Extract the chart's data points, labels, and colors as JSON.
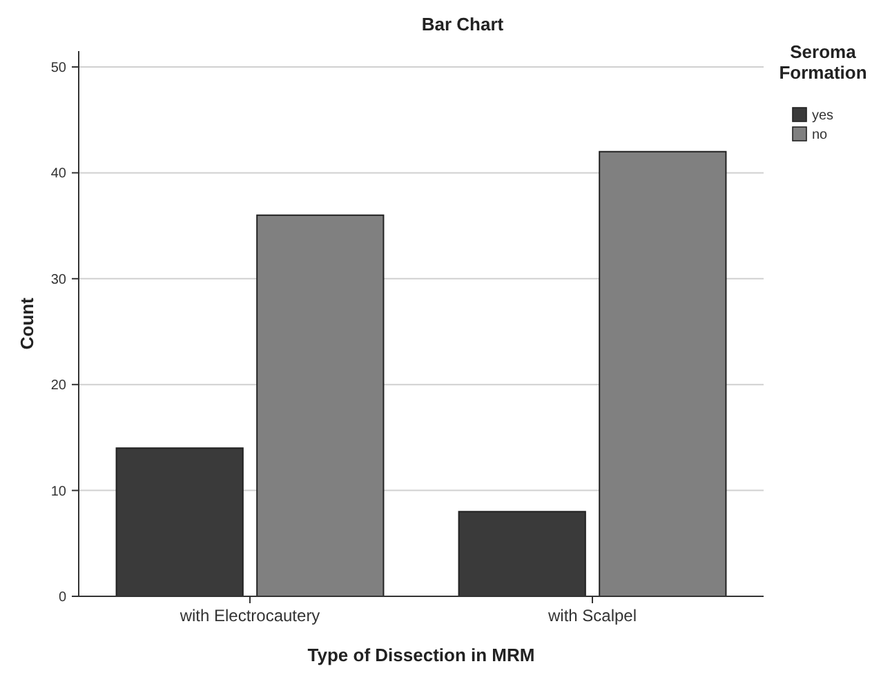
{
  "chart_data": {
    "type": "bar",
    "title": "Bar Chart",
    "xlabel": "Type of Dissection in MRM",
    "ylabel": "Count",
    "legend_title": "Seroma Formation",
    "categories": [
      "with Electrocautery",
      "with Scalpel"
    ],
    "series": [
      {
        "name": "yes",
        "color": "#3a3a3a",
        "values": [
          14,
          8
        ]
      },
      {
        "name": "no",
        "color": "#808080",
        "values": [
          36,
          42
        ]
      }
    ],
    "ylim": [
      0,
      51.5
    ],
    "yticks": [
      0,
      10,
      20,
      30,
      40,
      50
    ],
    "grid": "y",
    "legend": "top right"
  }
}
